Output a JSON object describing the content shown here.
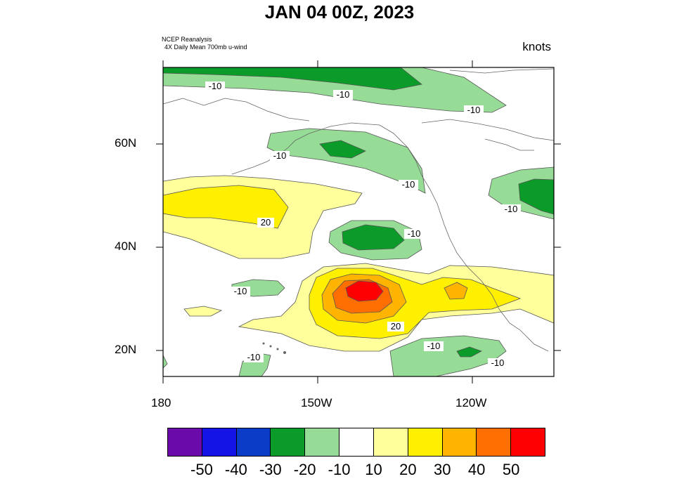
{
  "title": "JAN 04 00Z, 2023",
  "source_line1": "NCEP Reanalysis",
  "source_line2": "4X Daily Mean 700mb u-wind",
  "units": "knots",
  "lat_labels": [
    "60N",
    "40N",
    "20N"
  ],
  "lon_labels": [
    "180",
    "150W",
    "120W"
  ],
  "contour_labels": [
    "-10",
    "-10",
    "-10",
    "-10",
    "-10",
    "-10",
    "20",
    "-10",
    "-10",
    "20",
    "-10",
    "-10",
    "-10"
  ],
  "colorbar": {
    "colors": [
      "#6a0aab",
      "#1414e6",
      "#0a3cc8",
      "#0a9b28",
      "#96dc96",
      "#ffffff",
      "#ffff9b",
      "#fff000",
      "#ffb400",
      "#ff6e00",
      "#ff0000"
    ],
    "labels": [
      "-50",
      "-40",
      "-30",
      "-20",
      "-10",
      "10",
      "20",
      "30",
      "40",
      "50"
    ]
  }
}
